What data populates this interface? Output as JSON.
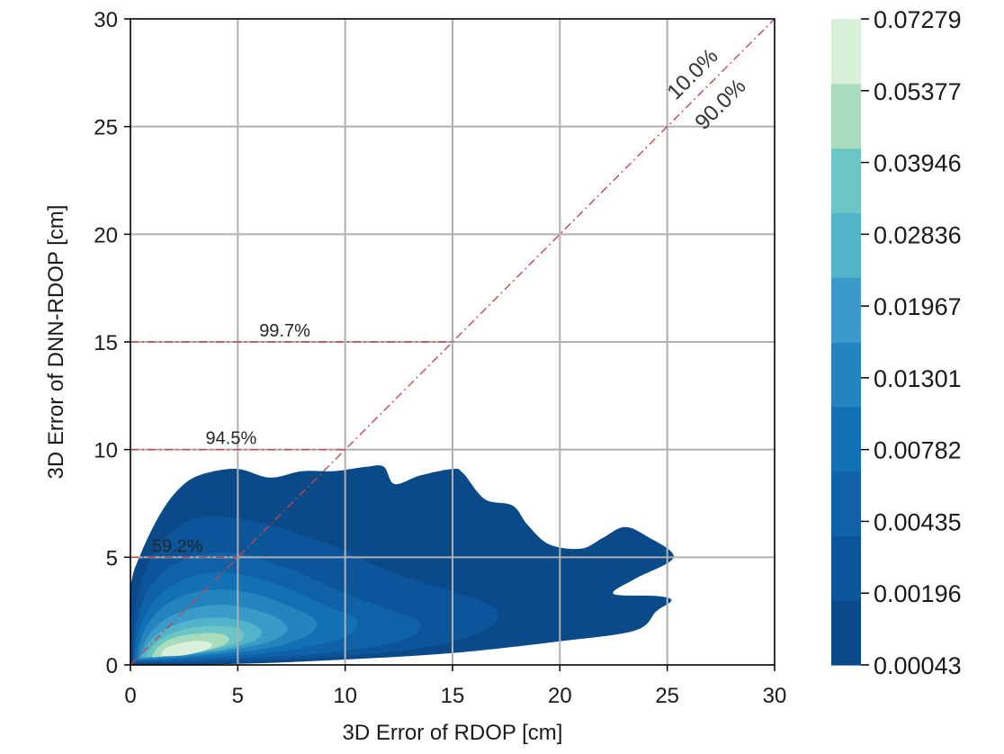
{
  "chart_data": {
    "type": "contour",
    "title": "",
    "xlabel": "3D Error of RDOP [cm]",
    "ylabel": "3D Error of DNN-RDOP [cm]",
    "xlim": [
      0,
      30
    ],
    "ylim": [
      0,
      30
    ],
    "xticks": [
      0,
      5,
      10,
      15,
      20,
      25,
      30
    ],
    "yticks": [
      0,
      5,
      10,
      15,
      20,
      25,
      30
    ],
    "grid": true,
    "colorbar": {
      "levels": [
        "0.00043",
        "0.00196",
        "0.00435",
        "0.00782",
        "0.01301",
        "0.01967",
        "0.02836",
        "0.03946",
        "0.05377",
        "0.07279"
      ],
      "colors": [
        "#0b4a88",
        "#0d559a",
        "#0f62a8",
        "#1270b4",
        "#2484be",
        "#3a9bcb",
        "#52b3c9",
        "#6cc6c6",
        "#a9dcbc",
        "#d9f0d8"
      ]
    },
    "density_regions": [
      {
        "level_index": 0,
        "outline": [
          [
            0,
            0
          ],
          [
            0,
            3.5
          ],
          [
            0.5,
            5.2
          ],
          [
            1.5,
            7.2
          ],
          [
            2.5,
            8.4
          ],
          [
            3.5,
            8.9
          ],
          [
            5,
            9.1
          ],
          [
            6.5,
            8.7
          ],
          [
            8,
            9
          ],
          [
            9.5,
            9
          ],
          [
            11,
            9.2
          ],
          [
            11.8,
            9.2
          ],
          [
            12.3,
            8.4
          ],
          [
            13.5,
            8.8
          ],
          [
            15,
            9.1
          ],
          [
            15.5,
            8.9
          ],
          [
            16.5,
            7.7
          ],
          [
            17.8,
            7.4
          ],
          [
            18.5,
            6.5
          ],
          [
            19.5,
            5.6
          ],
          [
            21,
            5.4
          ],
          [
            22,
            5.9
          ],
          [
            23,
            6.4
          ],
          [
            24,
            6
          ],
          [
            25.3,
            5
          ],
          [
            23.5,
            4
          ],
          [
            22.5,
            3.3
          ],
          [
            24.5,
            3.2
          ],
          [
            25.2,
            3
          ],
          [
            24.5,
            2.5
          ],
          [
            23.5,
            1.6
          ],
          [
            20,
            1.1
          ],
          [
            15,
            0.55
          ],
          [
            10,
            0.25
          ],
          [
            5,
            0.05
          ],
          [
            0,
            0
          ]
        ]
      },
      {
        "level_index": 1,
        "outline": [
          [
            0.1,
            0.1
          ],
          [
            0.3,
            3
          ],
          [
            1,
            5
          ],
          [
            2.2,
            6.4
          ],
          [
            3.5,
            6.9
          ],
          [
            5,
            6.8
          ],
          [
            6.5,
            6.5
          ],
          [
            8,
            6
          ],
          [
            9.5,
            5.5
          ],
          [
            11,
            4.8
          ],
          [
            13,
            4
          ],
          [
            15,
            3.4
          ],
          [
            17,
            2.6
          ],
          [
            16.5,
            1.6
          ],
          [
            13,
            0.7
          ],
          [
            8,
            0.3
          ],
          [
            3,
            0.12
          ],
          [
            0.1,
            0.1
          ]
        ]
      },
      {
        "level_index": 2,
        "outline": [
          [
            0.15,
            0.15
          ],
          [
            0.4,
            2.4
          ],
          [
            1.2,
            4
          ],
          [
            2.5,
            4.9
          ],
          [
            4,
            5.2
          ],
          [
            5.5,
            5.1
          ],
          [
            7,
            4.6
          ],
          [
            8.5,
            4
          ],
          [
            10,
            3.3
          ],
          [
            12,
            2.6
          ],
          [
            13.5,
            1.9
          ],
          [
            12.5,
            1.1
          ],
          [
            9,
            0.55
          ],
          [
            5,
            0.3
          ],
          [
            2,
            0.18
          ],
          [
            0.15,
            0.15
          ]
        ]
      },
      {
        "level_index": 3,
        "outline": [
          [
            0.2,
            0.2
          ],
          [
            0.5,
            1.9
          ],
          [
            1.3,
            3.2
          ],
          [
            2.6,
            4
          ],
          [
            4,
            4.3
          ],
          [
            5.6,
            4.1
          ],
          [
            7.2,
            3.6
          ],
          [
            9,
            2.8
          ],
          [
            10.5,
            2.1
          ],
          [
            10,
            1.3
          ],
          [
            7.5,
            0.7
          ],
          [
            4.5,
            0.4
          ],
          [
            1.8,
            0.25
          ],
          [
            0.2,
            0.2
          ]
        ]
      },
      {
        "level_index": 4,
        "outline": [
          [
            0.3,
            0.25
          ],
          [
            0.6,
            1.5
          ],
          [
            1.4,
            2.6
          ],
          [
            2.7,
            3.3
          ],
          [
            4.2,
            3.5
          ],
          [
            5.8,
            3.3
          ],
          [
            7.2,
            2.8
          ],
          [
            8.6,
            2.1
          ],
          [
            8.3,
            1.4
          ],
          [
            6.5,
            0.8
          ],
          [
            4,
            0.5
          ],
          [
            1.6,
            0.3
          ],
          [
            0.3,
            0.25
          ]
        ]
      },
      {
        "level_index": 5,
        "outline": [
          [
            0.4,
            0.3
          ],
          [
            0.8,
            1.3
          ],
          [
            1.6,
            2.1
          ],
          [
            2.8,
            2.6
          ],
          [
            4.2,
            2.8
          ],
          [
            5.6,
            2.6
          ],
          [
            6.8,
            2.2
          ],
          [
            7.3,
            1.6
          ],
          [
            6.2,
            1
          ],
          [
            4,
            0.6
          ],
          [
            1.8,
            0.4
          ],
          [
            0.4,
            0.3
          ]
        ]
      },
      {
        "level_index": 6,
        "outline": [
          [
            0.5,
            0.35
          ],
          [
            0.9,
            1.1
          ],
          [
            1.7,
            1.7
          ],
          [
            2.9,
            2.1
          ],
          [
            4.2,
            2.2
          ],
          [
            5.4,
            2
          ],
          [
            6.1,
            1.6
          ],
          [
            5.7,
            1.1
          ],
          [
            4.2,
            0.7
          ],
          [
            2.2,
            0.5
          ],
          [
            0.5,
            0.35
          ]
        ]
      },
      {
        "level_index": 7,
        "outline": [
          [
            0.7,
            0.35
          ],
          [
            1.1,
            0.95
          ],
          [
            1.9,
            1.45
          ],
          [
            3,
            1.75
          ],
          [
            4.3,
            1.8
          ],
          [
            5.2,
            1.6
          ],
          [
            5.1,
            1.1
          ],
          [
            3.9,
            0.75
          ],
          [
            2.2,
            0.5
          ],
          [
            0.7,
            0.35
          ]
        ]
      },
      {
        "level_index": 8,
        "outline": [
          [
            1,
            0.35
          ],
          [
            1.3,
            0.85
          ],
          [
            2,
            1.25
          ],
          [
            3.1,
            1.45
          ],
          [
            4.2,
            1.45
          ],
          [
            4.6,
            1.15
          ],
          [
            4,
            0.8
          ],
          [
            2.6,
            0.5
          ],
          [
            1,
            0.35
          ]
        ]
      },
      {
        "level_index": 9,
        "outline": [
          [
            1.4,
            0.4
          ],
          [
            1.6,
            0.75
          ],
          [
            2.3,
            1
          ],
          [
            3.2,
            1.12
          ],
          [
            3.8,
            0.98
          ],
          [
            3.5,
            0.7
          ],
          [
            2.5,
            0.45
          ],
          [
            1.4,
            0.4
          ]
        ]
      }
    ],
    "reference_lines": [
      {
        "type": "diagonal",
        "from": [
          0,
          0
        ],
        "to": [
          30,
          30
        ]
      },
      {
        "type": "horizontal",
        "y": 5,
        "x_end": 5
      },
      {
        "type": "horizontal",
        "y": 10,
        "x_end": 10
      },
      {
        "type": "horizontal",
        "y": 15,
        "x_end": 15
      }
    ],
    "annotations": [
      {
        "text": "59.2%",
        "x": 1,
        "y": 5.25,
        "color": "#ffffff",
        "style": "ann"
      },
      {
        "text": "94.5%",
        "x": 3.5,
        "y": 10.25,
        "color": "#262626",
        "style": "ann"
      },
      {
        "text": "99.7%",
        "x": 6,
        "y": 15.25,
        "color": "#262626",
        "style": "ann"
      },
      {
        "text": "10.0%",
        "x": 25.4,
        "y": 26.2,
        "rotate": -45,
        "color": "#333333",
        "style": "ann-diag"
      },
      {
        "text": "90.0%",
        "x": 26.7,
        "y": 24.8,
        "rotate": -45,
        "color": "#333333",
        "style": "ann-diag"
      }
    ]
  }
}
